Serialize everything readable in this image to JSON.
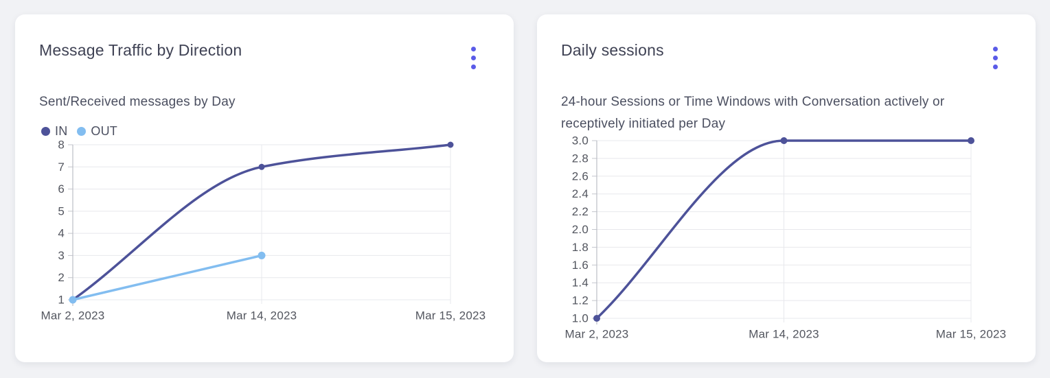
{
  "icons": {
    "card_menu": "kebab-vertical-dots"
  },
  "colors": {
    "accent_menu": "#5a5be8",
    "series_in": "#4d5299",
    "series_out": "#82bdf0",
    "card_background": "#ffffff",
    "page_background": "#f1f2f5"
  },
  "cards": [
    {
      "title": "Message Traffic by Direction",
      "subtitle": "Sent/Received messages by Day",
      "chart_data": {
        "type": "line",
        "title": "Message Traffic by Direction",
        "subtitle": "Sent/Received messages by Day",
        "x": [
          "Mar 2, 2023",
          "Mar 14, 2023",
          "Mar 15, 2023"
        ],
        "series": [
          {
            "name": "IN",
            "color": "#4d5299",
            "values": [
              1,
              7,
              8
            ]
          },
          {
            "name": "OUT",
            "color": "#82bdf0",
            "values": [
              1,
              3,
              null
            ]
          }
        ],
        "yticks": [
          "1",
          "2",
          "3",
          "4",
          "5",
          "6",
          "7",
          "8"
        ],
        "ylim": [
          1,
          8
        ],
        "legend": "top-left",
        "grid": true,
        "smooth": true
      }
    },
    {
      "title": "Daily sessions",
      "subtitle": "24-hour Sessions or Time Windows with Conversation actively or receptively initiated per Day",
      "chart_data": {
        "type": "line",
        "title": "Daily sessions",
        "subtitle": "24-hour Sessions or Time Windows with Conversation actively or receptively initiated per Day",
        "x": [
          "Mar 2, 2023",
          "Mar 14, 2023",
          "Mar 15, 2023"
        ],
        "series": [
          {
            "name": "",
            "color": "#4d5299",
            "values": [
              1.0,
              3.0,
              3.0
            ]
          }
        ],
        "yticks": [
          "1.0",
          "1.2",
          "1.4",
          "1.6",
          "1.8",
          "2.0",
          "2.2",
          "2.4",
          "2.6",
          "2.8",
          "3.0"
        ],
        "ylim": [
          1.0,
          3.0
        ],
        "legend": "none",
        "grid": true,
        "smooth": true
      }
    }
  ]
}
